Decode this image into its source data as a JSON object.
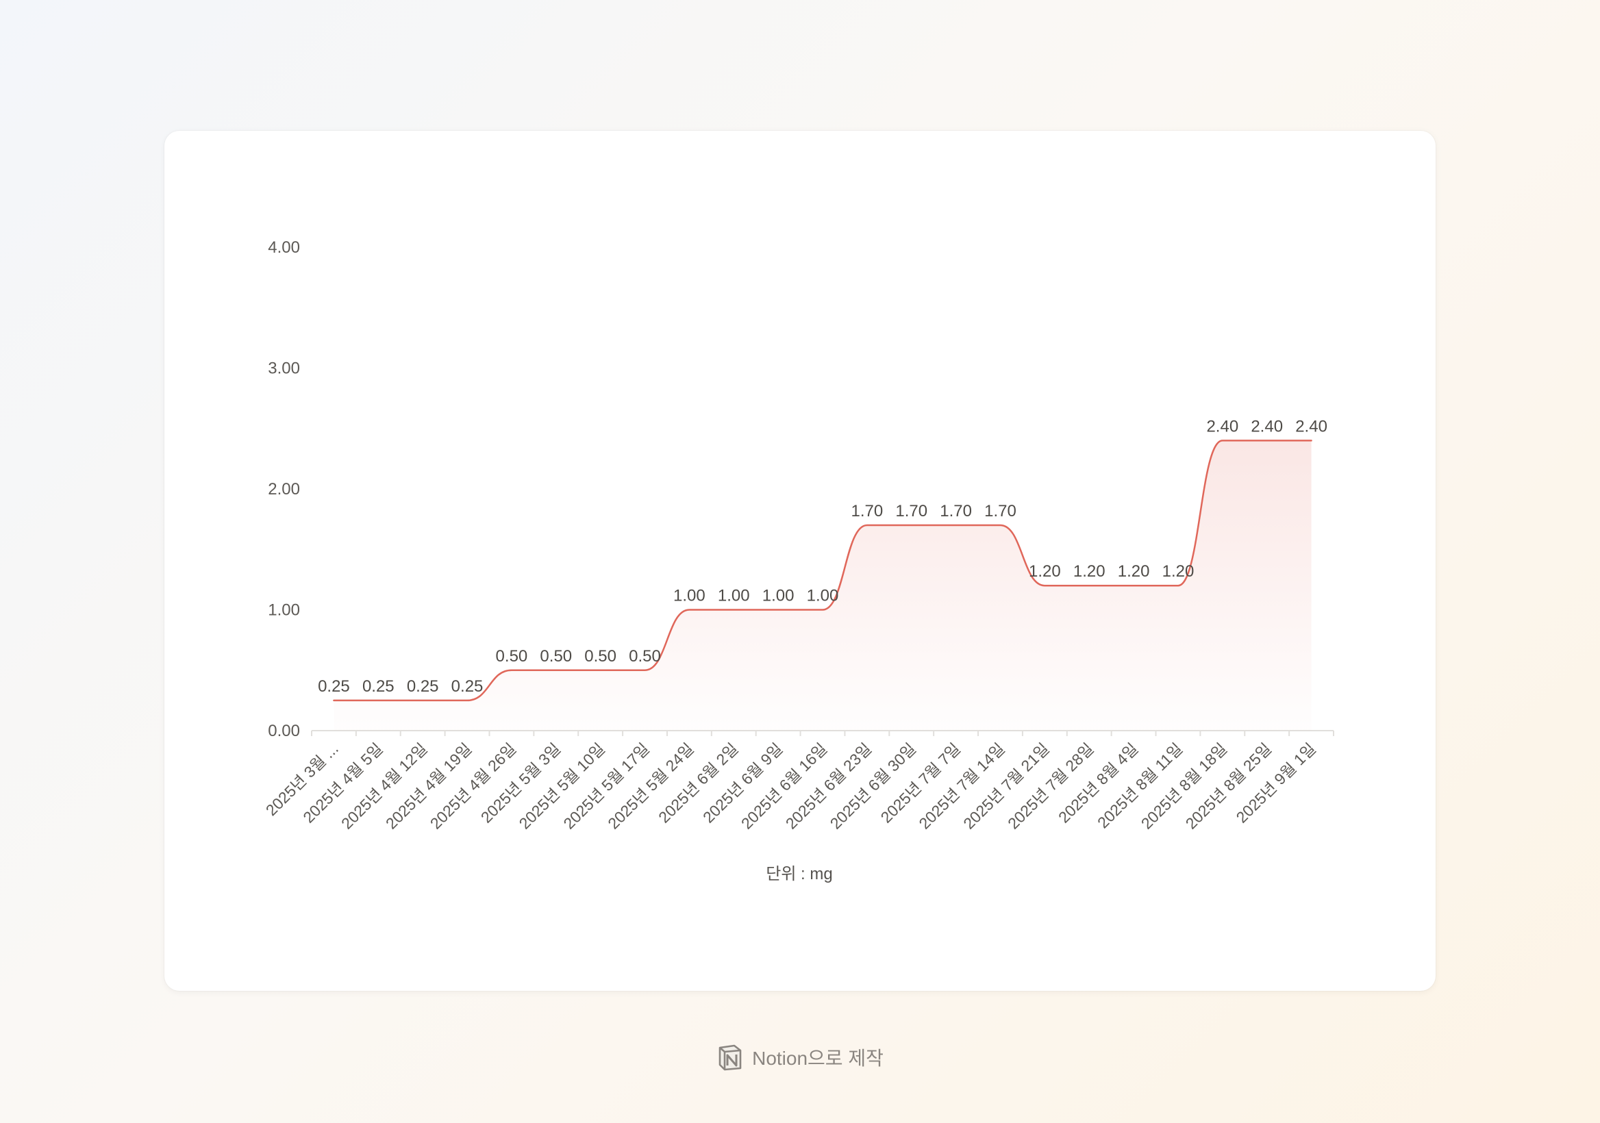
{
  "chart_data": {
    "type": "area",
    "title": "",
    "xlabel": "단위 : mg",
    "ylabel": "",
    "ylim": [
      0,
      4
    ],
    "y_ticks": [
      "0.00",
      "1.00",
      "2.00",
      "3.00",
      "4.00"
    ],
    "y_tick_values": [
      0,
      1,
      2,
      3,
      4
    ],
    "categories": [
      "2025년 3월 ...",
      "2025년 4월 5일",
      "2025년 4월 12일",
      "2025년 4월 19일",
      "2025년 4월 26일",
      "2025년 5월 3일",
      "2025년 5월 10일",
      "2025년 5월 17일",
      "2025년 5월 24일",
      "2025년 6월 2일",
      "2025년 6월 9일",
      "2025년 6월 16일",
      "2025년 6월 23일",
      "2025년 6월 30일",
      "2025년 7월 7일",
      "2025년 7월 14일",
      "2025년 7월 21일",
      "2025년 7월 28일",
      "2025년 8월 4일",
      "2025년 8월 11일",
      "2025년 8월 18일",
      "2025년 8월 25일",
      "2025년 9월 1일"
    ],
    "values": [
      0.25,
      0.25,
      0.25,
      0.25,
      0.5,
      0.5,
      0.5,
      0.5,
      1.0,
      1.0,
      1.0,
      1.0,
      1.7,
      1.7,
      1.7,
      1.7,
      1.2,
      1.2,
      1.2,
      1.2,
      2.4,
      2.4,
      2.4
    ],
    "value_labels": [
      "0.25",
      "0.25",
      "0.25",
      "0.25",
      "0.50",
      "0.50",
      "0.50",
      "0.50",
      "1.00",
      "1.00",
      "1.00",
      "1.00",
      "1.70",
      "1.70",
      "1.70",
      "1.70",
      "1.20",
      "1.20",
      "1.20",
      "1.20",
      "2.40",
      "2.40",
      "2.40"
    ],
    "line_color": "#e0675a",
    "fill_color": "#fbe6e4",
    "grid": false,
    "legend": "none"
  },
  "footer": {
    "text": "Notion으로 제작",
    "icon": "notion-logo-icon"
  }
}
